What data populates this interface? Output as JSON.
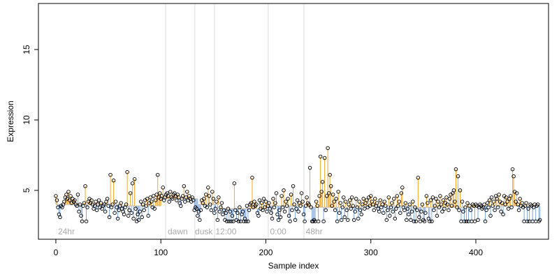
{
  "chart_data": {
    "type": "lollipop",
    "xlabel": "Sample index",
    "ylabel": "Expression",
    "xlim": [
      -16.6,
      469.2
    ],
    "ylim": [
      1.53,
      18.27
    ],
    "xticks": [
      0,
      100,
      200,
      300,
      400
    ],
    "yticks": [
      5,
      10,
      15
    ],
    "color_above": "#f5a623",
    "color_below": "#7fa8e0",
    "point_color": "#000000",
    "vlines": [
      104.5,
      132.4,
      151.1,
      202.3,
      236.3
    ],
    "annotations": [
      {
        "text": "24hr",
        "x": 2
      },
      {
        "text": "dawn",
        "x": 106.5
      },
      {
        "text": "dusk",
        "x": 132.5
      },
      {
        "text": "12:00",
        "x": 152
      },
      {
        "text": "0:00",
        "x": 204
      },
      {
        "text": "48hr",
        "x": 238
      }
    ],
    "baseline": [
      {
        "from": 0,
        "to": 30,
        "value": 4.0
      },
      {
        "from": 30,
        "to": 60,
        "value": 4.0
      },
      {
        "from": 60,
        "to": 100,
        "value": 3.9
      },
      {
        "from": 100,
        "to": 135,
        "value": 4.4
      },
      {
        "from": 135,
        "to": 155,
        "value": 4.0
      },
      {
        "from": 155,
        "to": 200,
        "value": 3.7
      },
      {
        "from": 200,
        "to": 240,
        "value": 3.9
      },
      {
        "from": 240,
        "to": 290,
        "value": 3.8
      },
      {
        "from": 290,
        "to": 340,
        "value": 3.9
      },
      {
        "from": 340,
        "to": 400,
        "value": 3.8
      },
      {
        "from": 400,
        "to": 461,
        "value": 3.9
      }
    ],
    "values": [
      4.6,
      4.3,
      3.8,
      3.3,
      3.1,
      3.9,
      3.8,
      4.0,
      4.2,
      4.5,
      4.7,
      4.4,
      4.9,
      4.3,
      4.6,
      4.1,
      4.4,
      4.2,
      4.3,
      4.0,
      3.9,
      4.7,
      3.5,
      4.0,
      3.2,
      2.8,
      3.9,
      4.1,
      5.3,
      2.8,
      3.8,
      4.2,
      4.4,
      4.1,
      4.3,
      4.0,
      3.7,
      3.9,
      4.2,
      3.6,
      4.0,
      4.3,
      3.8,
      4.1,
      3.7,
      3.9,
      4.0,
      3.5,
      4.2,
      4.4,
      3.9,
      3.1,
      6.1,
      3.8,
      4.0,
      5.7,
      3.4,
      4.2,
      3.8,
      3.0,
      3.6,
      3.9,
      4.1,
      3.7,
      3.5,
      3.3,
      3.8,
      4.0,
      6.3,
      3.2,
      3.6,
      4.8,
      3.4,
      5.5,
      3.0,
      5.8,
      3.7,
      2.8,
      3.3,
      2.9,
      3.5,
      4.2,
      3.1,
      4.0,
      3.6,
      4.3,
      3.9,
      4.4,
      3.2,
      4.1,
      4.5,
      4.2,
      3.8,
      4.6,
      3.7,
      4.3,
      4.7,
      6.1,
      4.5,
      4.8,
      4.4,
      4.6,
      5.2,
      4.3,
      4.5,
      4.7,
      4.8,
      4.6,
      4.2,
      4.9,
      4.5,
      4.4,
      4.7,
      4.8,
      4.6,
      4.3,
      4.7,
      4.5,
      4.1,
      3.9,
      4.4,
      4.6,
      5.3,
      4.2,
      4.5,
      4.9,
      4.3,
      4.6,
      4.4,
      4.2,
      4.5,
      4.3,
      3.6,
      3.8,
      3.7,
      3.2,
      3.5,
      2.9,
      3.6,
      4.3,
      4.1,
      4.4,
      3.9,
      4.7,
      3.8,
      5.2,
      4.6,
      4.0,
      3.6,
      4.9,
      4.4,
      3.4,
      3.7,
      4.2,
      2.9,
      4.5,
      3.5,
      3.8,
      4.1,
      3.3,
      3.6,
      2.9,
      3.4,
      2.8,
      3.7,
      2.8,
      3.5,
      2.8,
      3.2,
      2.8,
      5.5,
      3.6,
      2.9,
      3.4,
      2.8,
      3.8,
      2.8,
      3.3,
      3.5,
      2.8,
      3.0,
      2.8,
      3.9,
      2.8,
      3.6,
      4.0,
      4.1,
      5.9,
      3.8,
      4.2,
      3.9,
      4.0,
      3.4,
      3.2,
      4.3,
      3.7,
      4.1,
      3.6,
      4.4,
      3.8,
      4.2,
      3.5,
      3.9,
      4.1,
      3.7,
      3.4,
      3.0,
      4.4,
      3.8,
      4.1,
      4.8,
      3.3,
      2.9,
      3.6,
      3.1,
      4.6,
      3.8,
      5.0,
      3.5,
      4.2,
      3.9,
      4.4,
      3.2,
      2.8,
      4.7,
      3.6,
      5.3,
      4.0,
      2.9,
      3.7,
      4.3,
      3.5,
      4.1,
      3.9,
      4.8,
      4.2,
      3.3,
      2.8,
      3.9,
      4.5,
      4.1,
      4.0,
      6.6,
      3.8,
      2.8,
      2.8,
      2.9,
      2.8,
      4.2,
      3.9,
      2.8,
      4.6,
      7.4,
      4.9,
      5.6,
      2.8,
      7.3,
      3.6,
      4.6,
      8.0,
      4.8,
      6.1,
      5.3,
      3.9,
      4.7,
      4.2,
      3.6,
      4.4,
      2.8,
      4.9,
      3.4,
      4.1,
      2.9,
      3.8,
      4.5,
      3.1,
      4.2,
      3.6,
      2.9,
      4.0,
      4.3,
      3.7,
      4.5,
      3.9,
      2.9,
      3.5,
      4.4,
      3.8,
      3.0,
      4.2,
      3.6,
      3.3,
      4.0,
      4.4,
      3.7,
      4.1,
      4.3,
      3.8,
      4.5,
      3.9,
      4.6,
      4.2,
      4.0,
      3.6,
      4.4,
      3.9,
      4.1,
      3.7,
      3.5,
      4.3,
      3.8,
      4.0,
      3.4,
      4.2,
      3.9,
      2.9,
      3.6,
      4.5,
      3.2,
      3.8,
      4.1,
      3.5,
      4.4,
      3.0,
      3.7,
      4.6,
      3.9,
      4.2,
      3.4,
      4.8,
      5.2,
      3.8,
      3.6,
      4.1,
      2.9,
      3.7,
      3.3,
      4.0,
      2.9,
      3.5,
      4.2,
      2.8,
      3.8,
      2.8,
      3.6,
      5.9,
      3.1,
      2.8,
      3.5,
      4.0,
      2.9,
      2.8,
      3.4,
      4.6,
      4.1,
      3.0,
      2.8,
      4.3,
      2.8,
      4.5,
      3.6,
      3.9,
      4.4,
      3.2,
      4.2,
      3.8,
      4.6,
      4.0,
      3.5,
      4.3,
      3.7,
      4.1,
      4.5,
      4.0,
      3.6,
      4.4,
      4.7,
      3.9,
      4.8,
      5.0,
      4.2,
      6.5,
      3.8,
      6.0,
      3.6,
      5.0,
      2.8,
      4.2,
      3.5,
      2.8,
      3.8,
      2.8,
      4.1,
      2.8,
      3.9,
      3.6,
      2.8,
      4.0,
      3.9,
      2.8,
      4.0,
      3.9,
      2.9,
      3.8,
      4.0,
      3.9,
      3.7,
      3.8,
      4.0,
      2.8,
      3.6,
      4.1,
      3.8,
      4.3,
      3.2,
      4.5,
      3.9,
      4.2,
      3.6,
      4.6,
      4.4,
      3.8,
      4.7,
      4.2,
      3.5,
      4.1,
      3.3,
      4.6,
      4.0,
      4.5,
      4.2,
      3.7,
      4.4,
      4.6,
      3.8,
      6.5,
      6.0,
      4.9,
      4.2,
      4.8,
      4.0,
      3.6,
      4.4,
      3.9,
      4.1,
      3.8,
      2.8,
      3.9,
      4.1,
      2.8,
      3.7,
      2.8,
      4.0,
      3.9,
      2.8,
      3.8,
      4.0,
      2.8,
      3.9,
      4.0,
      2.8,
      2.9
    ]
  }
}
